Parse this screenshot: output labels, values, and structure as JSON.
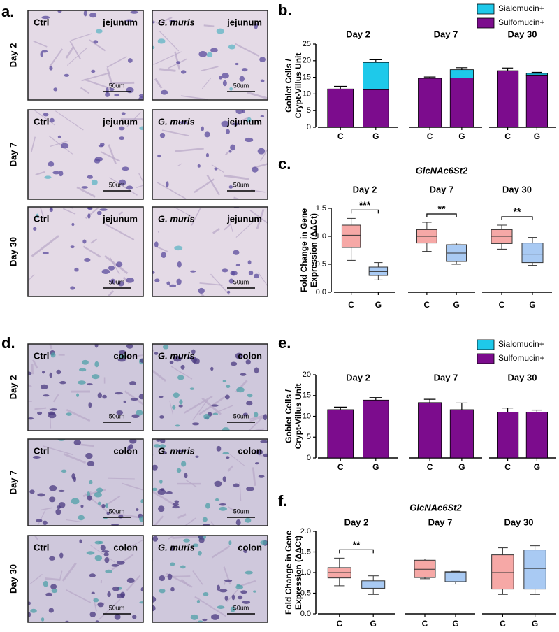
{
  "panel_labels": {
    "a": "a.",
    "b": "b.",
    "c": "c.",
    "d": "d.",
    "e": "e.",
    "f": "f."
  },
  "image_panels": {
    "a": {
      "rows": [
        {
          "day": "Day 2",
          "images": [
            {
              "group": "Ctrl",
              "tissue": "jejunum",
              "scale": "50um"
            },
            {
              "group": "G. muris",
              "tissue": "jejunum",
              "scale": "50um"
            }
          ]
        },
        {
          "day": "Day 7",
          "images": [
            {
              "group": "Ctrl",
              "tissue": "jejunum",
              "scale": "50um"
            },
            {
              "group": "G. muris",
              "tissue": "jejunum",
              "scale": "50um"
            }
          ]
        },
        {
          "day": "Day 30",
          "images": [
            {
              "group": "Ctrl",
              "tissue": "jejunum",
              "scale": "50um"
            },
            {
              "group": "G. muris",
              "tissue": "jejunum",
              "scale": "50um"
            }
          ]
        }
      ]
    },
    "d": {
      "rows": [
        {
          "day": "Day 2",
          "images": [
            {
              "group": "Ctrl",
              "tissue": "colon",
              "scale": "50um"
            },
            {
              "group": "G. muris",
              "tissue": "colon",
              "scale": "50um"
            }
          ]
        },
        {
          "day": "Day 7",
          "images": [
            {
              "group": "Ctrl",
              "tissue": "colon",
              "scale": "50um"
            },
            {
              "group": "G. muris",
              "tissue": "colon",
              "scale": "50um"
            }
          ]
        },
        {
          "day": "Day 30",
          "images": [
            {
              "group": "Ctrl",
              "tissue": "colon",
              "scale": "50um"
            },
            {
              "group": "G. muris",
              "tissue": "colon",
              "scale": "50um"
            }
          ]
        }
      ]
    }
  },
  "chart_data": [
    {
      "type": "bar",
      "stacked": true,
      "legend": true,
      "ylabel": [
        "Goblet Cells /",
        "Crypt-Villus Unit"
      ],
      "groups": [
        {
          "name": "Day 2",
          "categories": [
            "C",
            "G"
          ]
        },
        {
          "name": "Day 7",
          "categories": [
            "C",
            "G"
          ]
        },
        {
          "name": "Day 30",
          "categories": [
            "C",
            "G"
          ]
        }
      ],
      "series": [
        {
          "name": "Sialomucin+",
          "color": "#1ec9ea",
          "values": [
            0,
            8.2,
            0,
            2.5,
            0,
            0.5
          ],
          "errors": [
            null,
            0.8,
            null,
            0.6,
            null,
            0.3
          ]
        },
        {
          "name": "Sulfomucin+",
          "color": "#7c0c8d",
          "values": [
            11.5,
            11.3,
            14.7,
            14.8,
            17,
            15.7
          ],
          "errors": [
            0.8,
            1,
            0.4,
            0.8,
            0.8,
            0.4
          ]
        }
      ],
      "ylim": [
        0,
        25
      ],
      "yticks": [
        0,
        5,
        10,
        15,
        20,
        25
      ]
    },
    {
      "type": "box",
      "title": "GlcNAc6St2",
      "ylabel": [
        "Fold Change in Gene",
        "Expression (ΔΔCt)"
      ],
      "groups": [
        {
          "name": "Day 2",
          "categories": [
            "C",
            "G"
          ]
        },
        {
          "name": "Day 7",
          "categories": [
            "C",
            "G"
          ]
        },
        {
          "name": "Day 30",
          "categories": [
            "C",
            "G"
          ]
        }
      ],
      "boxes": [
        {
          "min": 0.57,
          "q1": 0.8,
          "median": 1.02,
          "q3": 1.2,
          "max": 1.32,
          "color": "#f6a8a6"
        },
        {
          "min": 0.22,
          "q1": 0.3,
          "median": 0.37,
          "q3": 0.45,
          "max": 0.53,
          "color": "#a9caf3"
        },
        {
          "min": 0.73,
          "q1": 0.88,
          "median": 1.0,
          "q3": 1.12,
          "max": 1.25,
          "color": "#f6a8a6"
        },
        {
          "min": 0.5,
          "q1": 0.55,
          "median": 0.7,
          "q3": 0.85,
          "max": 0.88,
          "color": "#a9caf3"
        },
        {
          "min": 0.77,
          "q1": 0.87,
          "median": 1.0,
          "q3": 1.12,
          "max": 1.2,
          "color": "#f6a8a6"
        },
        {
          "min": 0.48,
          "q1": 0.53,
          "median": 0.68,
          "q3": 0.88,
          "max": 0.98,
          "color": "#a9caf3"
        }
      ],
      "significance": [
        "***",
        "**",
        "**"
      ],
      "ylim": [
        0,
        1.5
      ],
      "yticks": [
        {
          "value": 0,
          "label": "0.0"
        },
        0.5,
        {
          "value": 1,
          "label": "1.0"
        },
        1.5
      ]
    },
    {
      "type": "bar",
      "stacked": true,
      "legend": true,
      "ylabel": [
        "Goblet Cells /",
        "Crypt-Villus Unit"
      ],
      "groups": [
        {
          "name": "Day 2",
          "categories": [
            "C",
            "G"
          ]
        },
        {
          "name": "Day 7",
          "categories": [
            "C",
            "G"
          ]
        },
        {
          "name": "Day 30",
          "categories": [
            "C",
            "G"
          ]
        }
      ],
      "series": [
        {
          "name": "Sialomucin+",
          "color": "#1ec9ea",
          "values": [
            0,
            0,
            0,
            0,
            0,
            0
          ],
          "errors": [
            null,
            null,
            null,
            null,
            null,
            null
          ]
        },
        {
          "name": "Sulfomucin+",
          "color": "#7c0c8d",
          "values": [
            11.6,
            13.9,
            13.3,
            11.6,
            11,
            11
          ],
          "errors": [
            0.6,
            0.6,
            0.8,
            1.6,
            1,
            0.5
          ]
        }
      ],
      "ylim": [
        0,
        20
      ],
      "yticks": [
        0,
        5,
        10,
        15,
        20
      ]
    },
    {
      "type": "box",
      "title": "GlcNAc6St2",
      "ylabel": [
        "Fold Change in Gene",
        "Expression (ΔΔCt)"
      ],
      "groups": [
        {
          "name": "Day 2",
          "categories": [
            "C",
            "G"
          ]
        },
        {
          "name": "Day 7",
          "categories": [
            "C",
            "G"
          ]
        },
        {
          "name": "Day 30",
          "categories": [
            "C",
            "G"
          ]
        }
      ],
      "boxes": [
        {
          "min": 0.68,
          "q1": 0.87,
          "median": 1.0,
          "q3": 1.12,
          "max": 1.35,
          "color": "#f6a8a6"
        },
        {
          "min": 0.47,
          "q1": 0.62,
          "median": 0.72,
          "q3": 0.8,
          "max": 0.92,
          "color": "#a9caf3"
        },
        {
          "min": 0.85,
          "q1": 0.88,
          "median": 1.08,
          "q3": 1.3,
          "max": 1.33,
          "color": "#f6a8a6"
        },
        {
          "min": 0.72,
          "q1": 0.78,
          "median": 1.0,
          "q3": 1.02,
          "max": 1.03,
          "color": "#a9caf3"
        },
        {
          "min": 0.47,
          "q1": 0.6,
          "median": 1.0,
          "q3": 1.43,
          "max": 1.6,
          "color": "#f6a8a6"
        },
        {
          "min": 0.47,
          "q1": 0.6,
          "median": 1.1,
          "q3": 1.55,
          "max": 1.65,
          "color": "#a9caf3"
        }
      ],
      "significance": [
        "**",
        null,
        null
      ],
      "ylim": [
        0,
        2
      ],
      "yticks": [
        {
          "value": 0,
          "label": "0.0"
        },
        0.5,
        {
          "value": 1,
          "label": "1.0"
        },
        1.5,
        {
          "value": 2,
          "label": "2.0"
        }
      ]
    }
  ]
}
